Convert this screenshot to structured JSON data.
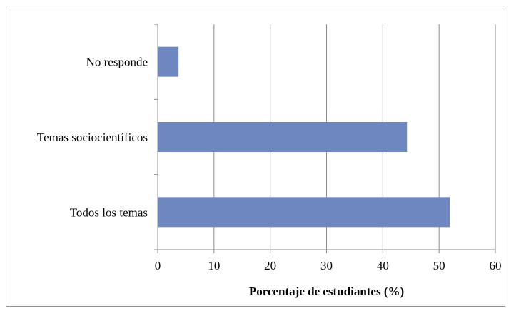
{
  "chart_data": {
    "type": "bar",
    "orientation": "horizontal",
    "title": "",
    "xlabel": "Porcentaje de estudiantes (%)",
    "ylabel": "",
    "categories": [
      "No responde",
      "Temas sociocientíficos",
      "Todos los temas"
    ],
    "values": [
      3.7,
      44.3,
      51.9
    ],
    "xlim": [
      0,
      60
    ],
    "xticks": [
      0,
      10,
      20,
      30,
      40,
      50,
      60
    ],
    "grid": "vertical",
    "legend": "none",
    "bar_color": "#6f87c1",
    "grid_color": "#8c8c8c",
    "axis_color": "#8c8c8c"
  }
}
